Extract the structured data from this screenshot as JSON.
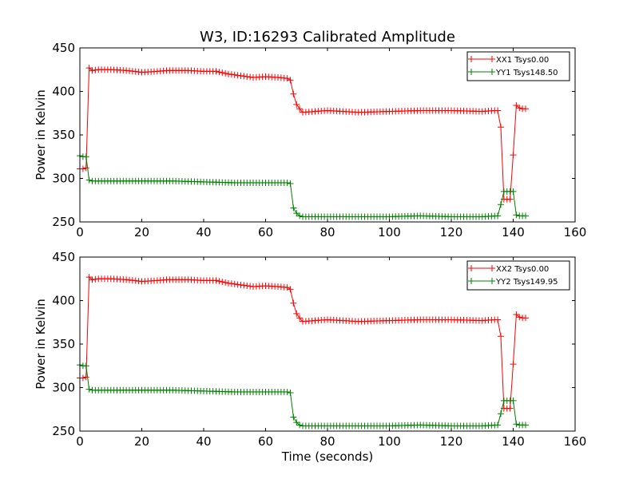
{
  "chart_data": [
    {
      "type": "line",
      "title": "W3, ID:16293 Calibrated Amplitude",
      "xlabel": "",
      "ylabel": "Power in Kelvin",
      "xlim": [
        0,
        160
      ],
      "ylim": [
        250,
        450
      ],
      "xticks": [
        0,
        20,
        40,
        60,
        80,
        100,
        120,
        140,
        160
      ],
      "yticks": [
        250,
        300,
        350,
        400,
        450
      ],
      "legend_position": "top-right",
      "series": [
        {
          "name": "XX1 Tsys0.00",
          "color": "#ff0000",
          "marker": "plus",
          "points": [
            [
              0,
              311
            ],
            [
              1,
              311
            ],
            [
              2,
              312
            ],
            [
              3,
              427
            ],
            [
              4,
              424
            ],
            [
              6,
              425
            ],
            [
              10,
              425
            ],
            [
              15,
              424
            ],
            [
              20,
              422
            ],
            [
              25,
              423
            ],
            [
              28,
              424
            ],
            [
              35,
              424
            ],
            [
              40,
              423
            ],
            [
              44,
              423
            ],
            [
              48,
              420
            ],
            [
              52,
              418
            ],
            [
              56,
              416
            ],
            [
              60,
              417
            ],
            [
              64,
              416
            ],
            [
              67,
              415
            ],
            [
              68,
              413
            ],
            [
              69,
              397
            ],
            [
              70,
              385
            ],
            [
              71,
              380
            ],
            [
              72,
              376
            ],
            [
              76,
              377
            ],
            [
              80,
              378
            ],
            [
              90,
              376
            ],
            [
              100,
              377
            ],
            [
              110,
              378
            ],
            [
              120,
              378
            ],
            [
              130,
              377
            ],
            [
              134,
              378
            ],
            [
              135,
              378
            ],
            [
              136,
              359
            ],
            [
              137,
              276
            ],
            [
              138,
              276
            ],
            [
              139,
              276
            ],
            [
              140,
              327
            ],
            [
              141,
              384
            ],
            [
              142,
              381
            ],
            [
              143,
              380
            ],
            [
              144,
              380
            ]
          ]
        },
        {
          "name": "YY1 Tsys148.50",
          "color": "#008000",
          "marker": "plus",
          "points": [
            [
              0,
              326
            ],
            [
              1,
              325
            ],
            [
              2,
              325
            ],
            [
              3,
              298
            ],
            [
              4,
              297
            ],
            [
              10,
              297
            ],
            [
              20,
              297
            ],
            [
              30,
              297
            ],
            [
              40,
              296
            ],
            [
              50,
              295
            ],
            [
              60,
              295
            ],
            [
              67,
              295
            ],
            [
              68,
              294
            ],
            [
              69,
              266
            ],
            [
              70,
              260
            ],
            [
              71,
              257
            ],
            [
              72,
              256
            ],
            [
              80,
              256
            ],
            [
              90,
              256
            ],
            [
              100,
              256
            ],
            [
              110,
              257
            ],
            [
              120,
              256
            ],
            [
              130,
              256
            ],
            [
              135,
              257
            ],
            [
              136,
              270
            ],
            [
              137,
              285
            ],
            [
              138,
              285
            ],
            [
              139,
              285
            ],
            [
              140,
              285
            ],
            [
              141,
              258
            ],
            [
              142,
              257
            ],
            [
              143,
              257
            ],
            [
              144,
              257
            ]
          ]
        }
      ]
    },
    {
      "type": "line",
      "title": "",
      "xlabel": "Time (seconds)",
      "ylabel": "Power in Kelvin",
      "xlim": [
        0,
        160
      ],
      "ylim": [
        250,
        450
      ],
      "xticks": [
        0,
        20,
        40,
        60,
        80,
        100,
        120,
        140,
        160
      ],
      "yticks": [
        250,
        300,
        350,
        400,
        450
      ],
      "legend_position": "top-right",
      "series": [
        {
          "name": "XX2 Tsys0.00",
          "color": "#ff0000",
          "marker": "plus",
          "points": [
            [
              0,
              311
            ],
            [
              1,
              311
            ],
            [
              2,
              312
            ],
            [
              3,
              427
            ],
            [
              4,
              424
            ],
            [
              6,
              425
            ],
            [
              10,
              425
            ],
            [
              15,
              424
            ],
            [
              20,
              422
            ],
            [
              25,
              423
            ],
            [
              28,
              424
            ],
            [
              35,
              424
            ],
            [
              40,
              423
            ],
            [
              44,
              423
            ],
            [
              48,
              420
            ],
            [
              52,
              418
            ],
            [
              56,
              416
            ],
            [
              60,
              417
            ],
            [
              64,
              416
            ],
            [
              67,
              415
            ],
            [
              68,
              413
            ],
            [
              69,
              397
            ],
            [
              70,
              385
            ],
            [
              71,
              380
            ],
            [
              72,
              376
            ],
            [
              76,
              377
            ],
            [
              80,
              378
            ],
            [
              90,
              376
            ],
            [
              100,
              377
            ],
            [
              110,
              378
            ],
            [
              120,
              378
            ],
            [
              130,
              377
            ],
            [
              134,
              378
            ],
            [
              135,
              378
            ],
            [
              136,
              359
            ],
            [
              137,
              276
            ],
            [
              138,
              276
            ],
            [
              139,
              276
            ],
            [
              140,
              327
            ],
            [
              141,
              384
            ],
            [
              142,
              381
            ],
            [
              143,
              380
            ],
            [
              144,
              380
            ]
          ]
        },
        {
          "name": "YY2 Tsys149.95",
          "color": "#008000",
          "marker": "plus",
          "points": [
            [
              0,
              326
            ],
            [
              1,
              325
            ],
            [
              2,
              325
            ],
            [
              3,
              298
            ],
            [
              4,
              297
            ],
            [
              10,
              297
            ],
            [
              20,
              297
            ],
            [
              30,
              297
            ],
            [
              40,
              296
            ],
            [
              50,
              295
            ],
            [
              60,
              295
            ],
            [
              67,
              295
            ],
            [
              68,
              294
            ],
            [
              69,
              266
            ],
            [
              70,
              260
            ],
            [
              71,
              257
            ],
            [
              72,
              256
            ],
            [
              80,
              256
            ],
            [
              90,
              256
            ],
            [
              100,
              256
            ],
            [
              110,
              257
            ],
            [
              120,
              256
            ],
            [
              130,
              256
            ],
            [
              135,
              257
            ],
            [
              136,
              270
            ],
            [
              137,
              285
            ],
            [
              138,
              285
            ],
            [
              139,
              285
            ],
            [
              140,
              285
            ],
            [
              141,
              258
            ],
            [
              142,
              257
            ],
            [
              143,
              257
            ],
            [
              144,
              257
            ]
          ]
        }
      ]
    }
  ]
}
